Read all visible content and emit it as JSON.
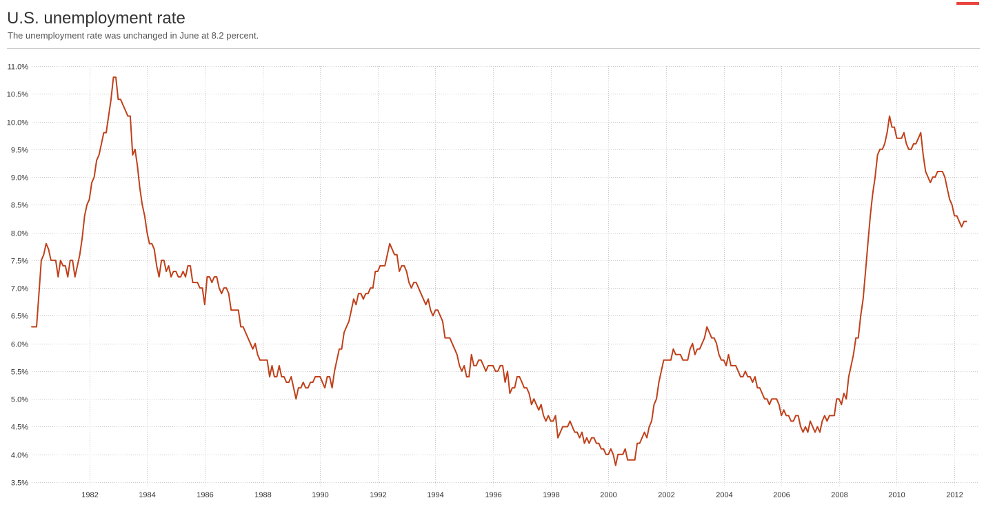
{
  "title": "U.S. unemployment rate",
  "subtitle": "The unemployment rate was unchanged in June at 8.2 percent.",
  "colors": {
    "line": "#c0401a",
    "accent": "#e8433a",
    "grid": "#c8c8c8"
  },
  "chart_data": {
    "type": "line",
    "title": "U.S. unemployment rate",
    "subtitle": "The unemployment rate was unchanged in June at 8.2 percent.",
    "xlabel": "",
    "ylabel": "",
    "xlim": [
      1980.0,
      2012.5
    ],
    "ylim": [
      3.5,
      11.0
    ],
    "x_ticks": [
      1982,
      1984,
      1986,
      1988,
      1990,
      1992,
      1994,
      1996,
      1998,
      2000,
      2002,
      2004,
      2006,
      2008,
      2010,
      2012
    ],
    "x_tick_labels": [
      "1982",
      "1984",
      "1986",
      "1988",
      "1990",
      "1992",
      "1994",
      "1996",
      "1998",
      "2000",
      "2002",
      "2004",
      "2006",
      "2008",
      "2010",
      "2012"
    ],
    "y_ticks": [
      3.5,
      4.0,
      4.5,
      5.0,
      5.5,
      6.0,
      6.5,
      7.0,
      7.5,
      8.0,
      8.5,
      9.0,
      9.5,
      10.0,
      10.5,
      11.0
    ],
    "y_tick_labels": [
      "3.5%",
      "4.0%",
      "4.5%",
      "5.0%",
      "5.5%",
      "6.0%",
      "6.5%",
      "7.0%",
      "7.5%",
      "8.0%",
      "8.5%",
      "9.0%",
      "9.5%",
      "10.0%",
      "10.5%",
      "11.0%"
    ],
    "grid": true,
    "series": [
      {
        "frequency": "monthly",
        "start": "1980-01",
        "values": [
          6.3,
          6.3,
          6.3,
          6.9,
          7.5,
          7.6,
          7.8,
          7.7,
          7.5,
          7.5,
          7.5,
          7.2,
          7.5,
          7.4,
          7.4,
          7.2,
          7.5,
          7.5,
          7.2,
          7.4,
          7.6,
          7.9,
          8.3,
          8.5,
          8.6,
          8.9,
          9.0,
          9.3,
          9.4,
          9.6,
          9.8,
          9.8,
          10.1,
          10.4,
          10.8,
          10.8,
          10.4,
          10.4,
          10.3,
          10.2,
          10.1,
          10.1,
          9.4,
          9.5,
          9.2,
          8.8,
          8.5,
          8.3,
          8.0,
          7.8,
          7.8,
          7.7,
          7.4,
          7.2,
          7.5,
          7.5,
          7.3,
          7.4,
          7.2,
          7.3,
          7.3,
          7.2,
          7.2,
          7.3,
          7.2,
          7.4,
          7.4,
          7.1,
          7.1,
          7.1,
          7.0,
          7.0,
          6.7,
          7.2,
          7.2,
          7.1,
          7.2,
          7.2,
          7.0,
          6.9,
          7.0,
          7.0,
          6.9,
          6.6,
          6.6,
          6.6,
          6.6,
          6.3,
          6.3,
          6.2,
          6.1,
          6.0,
          5.9,
          6.0,
          5.8,
          5.7,
          5.7,
          5.7,
          5.7,
          5.4,
          5.6,
          5.4,
          5.4,
          5.6,
          5.4,
          5.4,
          5.3,
          5.3,
          5.4,
          5.2,
          5.0,
          5.2,
          5.2,
          5.3,
          5.2,
          5.2,
          5.3,
          5.3,
          5.4,
          5.4,
          5.4,
          5.3,
          5.2,
          5.4,
          5.4,
          5.2,
          5.5,
          5.7,
          5.9,
          5.9,
          6.2,
          6.3,
          6.4,
          6.6,
          6.8,
          6.7,
          6.9,
          6.9,
          6.8,
          6.9,
          6.9,
          7.0,
          7.0,
          7.3,
          7.3,
          7.4,
          7.4,
          7.4,
          7.6,
          7.8,
          7.7,
          7.6,
          7.6,
          7.3,
          7.4,
          7.4,
          7.3,
          7.1,
          7.0,
          7.1,
          7.1,
          7.0,
          6.9,
          6.8,
          6.7,
          6.8,
          6.6,
          6.5,
          6.6,
          6.6,
          6.5,
          6.4,
          6.1,
          6.1,
          6.1,
          6.0,
          5.9,
          5.8,
          5.6,
          5.5,
          5.6,
          5.4,
          5.4,
          5.8,
          5.6,
          5.6,
          5.7,
          5.7,
          5.6,
          5.5,
          5.6,
          5.6,
          5.6,
          5.5,
          5.5,
          5.6,
          5.6,
          5.3,
          5.5,
          5.1,
          5.2,
          5.2,
          5.4,
          5.4,
          5.3,
          5.2,
          5.2,
          5.1,
          4.9,
          5.0,
          4.9,
          4.8,
          4.9,
          4.7,
          4.6,
          4.7,
          4.6,
          4.6,
          4.7,
          4.3,
          4.4,
          4.5,
          4.5,
          4.5,
          4.6,
          4.5,
          4.4,
          4.4,
          4.3,
          4.4,
          4.2,
          4.3,
          4.2,
          4.3,
          4.3,
          4.2,
          4.2,
          4.1,
          4.1,
          4.0,
          4.0,
          4.1,
          4.0,
          3.8,
          4.0,
          4.0,
          4.0,
          4.1,
          3.9,
          3.9,
          3.9,
          3.9,
          4.2,
          4.2,
          4.3,
          4.4,
          4.3,
          4.5,
          4.6,
          4.9,
          5.0,
          5.3,
          5.5,
          5.7,
          5.7,
          5.7,
          5.7,
          5.9,
          5.8,
          5.8,
          5.8,
          5.7,
          5.7,
          5.7,
          5.9,
          6.0,
          5.8,
          5.9,
          5.9,
          6.0,
          6.1,
          6.3,
          6.2,
          6.1,
          6.1,
          6.0,
          5.8,
          5.7,
          5.7,
          5.6,
          5.8,
          5.6,
          5.6,
          5.6,
          5.5,
          5.4,
          5.4,
          5.5,
          5.4,
          5.4,
          5.3,
          5.4,
          5.2,
          5.2,
          5.1,
          5.0,
          5.0,
          4.9,
          5.0,
          5.0,
          5.0,
          4.9,
          4.7,
          4.8,
          4.7,
          4.7,
          4.6,
          4.6,
          4.7,
          4.7,
          4.5,
          4.4,
          4.5,
          4.4,
          4.6,
          4.5,
          4.4,
          4.5,
          4.4,
          4.6,
          4.7,
          4.6,
          4.7,
          4.7,
          4.7,
          5.0,
          5.0,
          4.9,
          5.1,
          5.0,
          5.4,
          5.6,
          5.8,
          6.1,
          6.1,
          6.5,
          6.8,
          7.3,
          7.8,
          8.3,
          8.7,
          9.0,
          9.4,
          9.5,
          9.5,
          9.6,
          9.8,
          10.1,
          9.9,
          9.9,
          9.7,
          9.7,
          9.7,
          9.8,
          9.6,
          9.5,
          9.5,
          9.6,
          9.6,
          9.7,
          9.8,
          9.4,
          9.1,
          9.0,
          8.9,
          9.0,
          9.0,
          9.1,
          9.1,
          9.1,
          9.0,
          8.8,
          8.6,
          8.5,
          8.3,
          8.3,
          8.2,
          8.1,
          8.2,
          8.2
        ]
      }
    ]
  }
}
